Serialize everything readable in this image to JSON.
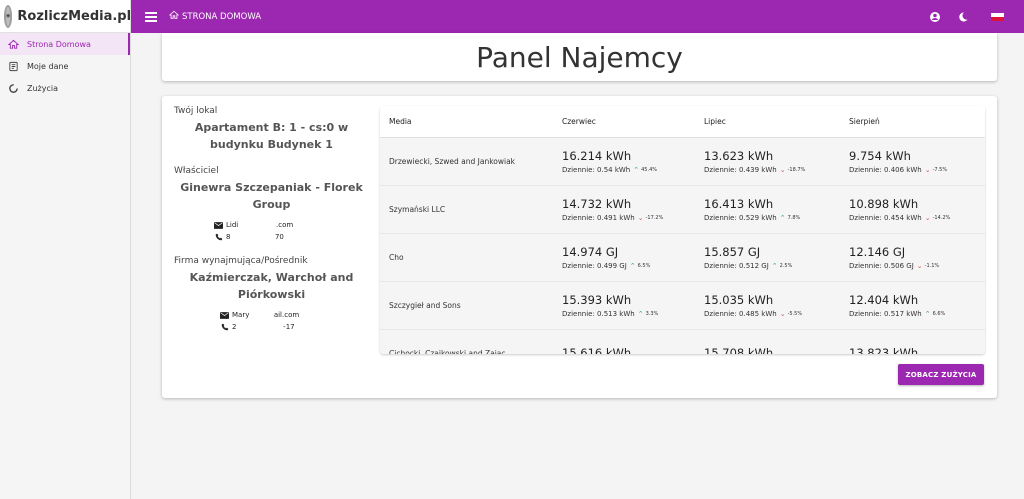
{
  "app": {
    "brand": "RozliczMedia.pl"
  },
  "sidebar": {
    "items": [
      {
        "label": "Strona Domowa",
        "icon": "home-icon",
        "active": true
      },
      {
        "label": "Moje dane",
        "icon": "document-icon",
        "active": false
      },
      {
        "label": "Zużycia",
        "icon": "donut-icon",
        "active": false
      }
    ]
  },
  "topbar": {
    "breadcrumb": "STRONA DOMOWA"
  },
  "page": {
    "title": "Panel Najemcy"
  },
  "info": {
    "lokal_label": "Twój lokal",
    "lokal_value": "Apartament B: 1 - cs:0 w budynku Budynek 1",
    "owner_label": "Właściciel",
    "owner_name": "Ginewra Szczepaniak - Florek Group",
    "owner_email": "Lidi                 .com",
    "owner_phone": "8                    70",
    "agency_label": "Firma wynajmująca/Pośrednik",
    "agency_name": "Kaźmierczak, Warchoł and Piórkowski",
    "agency_email": "Mary           ail.com",
    "agency_phone": "2                     -17"
  },
  "table": {
    "headers": [
      "Media",
      "Czerwiec",
      "Lipiec",
      "Sierpień"
    ],
    "rows": [
      {
        "media": "Drzewiecki, Szwed and Jankowiak",
        "cells": [
          {
            "value": "16.214 kWh",
            "daily": "Dziennie: 0.54 kWh",
            "trend": "up",
            "pct": "45.4%"
          },
          {
            "value": "13.623 kWh",
            "daily": "Dziennie: 0.439 kWh",
            "trend": "down",
            "pct": "-18.7%"
          },
          {
            "value": "9.754 kWh",
            "daily": "Dziennie: 0.406 kWh",
            "trend": "down",
            "pct": "-7.5%"
          }
        ]
      },
      {
        "media": "Szymański LLC",
        "cells": [
          {
            "value": "14.732 kWh",
            "daily": "Dziennie: 0.491 kWh",
            "trend": "down",
            "pct": "-17.2%"
          },
          {
            "value": "16.413 kWh",
            "daily": "Dziennie: 0.529 kWh",
            "trend": "up",
            "pct": "7.8%"
          },
          {
            "value": "10.898 kWh",
            "daily": "Dziennie: 0.454 kWh",
            "trend": "down",
            "pct": "-14.2%"
          }
        ]
      },
      {
        "media": "Cho",
        "cells": [
          {
            "value": "14.974 GJ",
            "daily": "Dziennie: 0.499 GJ",
            "trend": "up",
            "pct": "6.5%"
          },
          {
            "value": "15.857 GJ",
            "daily": "Dziennie: 0.512 GJ",
            "trend": "up",
            "pct": "2.5%"
          },
          {
            "value": "12.146 GJ",
            "daily": "Dziennie: 0.506 GJ",
            "trend": "down",
            "pct": "-1.1%"
          }
        ]
      },
      {
        "media": "Szczygieł and Sons",
        "cells": [
          {
            "value": "15.393 kWh",
            "daily": "Dziennie: 0.513 kWh",
            "trend": "up",
            "pct": "3.3%"
          },
          {
            "value": "15.035 kWh",
            "daily": "Dziennie: 0.485 kWh",
            "trend": "down",
            "pct": "-5.5%"
          },
          {
            "value": "12.404 kWh",
            "daily": "Dziennie: 0.517 kWh",
            "trend": "up",
            "pct": "6.6%"
          }
        ]
      },
      {
        "media": "Cichocki, Czajkowski and Zając",
        "cells": [
          {
            "value": "15.616 kWh",
            "daily": "",
            "trend": "",
            "pct": ""
          },
          {
            "value": "15.708 kWh",
            "daily": "",
            "trend": "",
            "pct": ""
          },
          {
            "value": "13.823 kWh",
            "daily": "",
            "trend": "",
            "pct": ""
          }
        ]
      }
    ]
  },
  "actions": {
    "see_usage": "ZOBACZ ZUŻYCIA"
  },
  "colors": {
    "accent": "#9c27b0",
    "up": "#2e9e4f",
    "down": "#d9534f"
  }
}
